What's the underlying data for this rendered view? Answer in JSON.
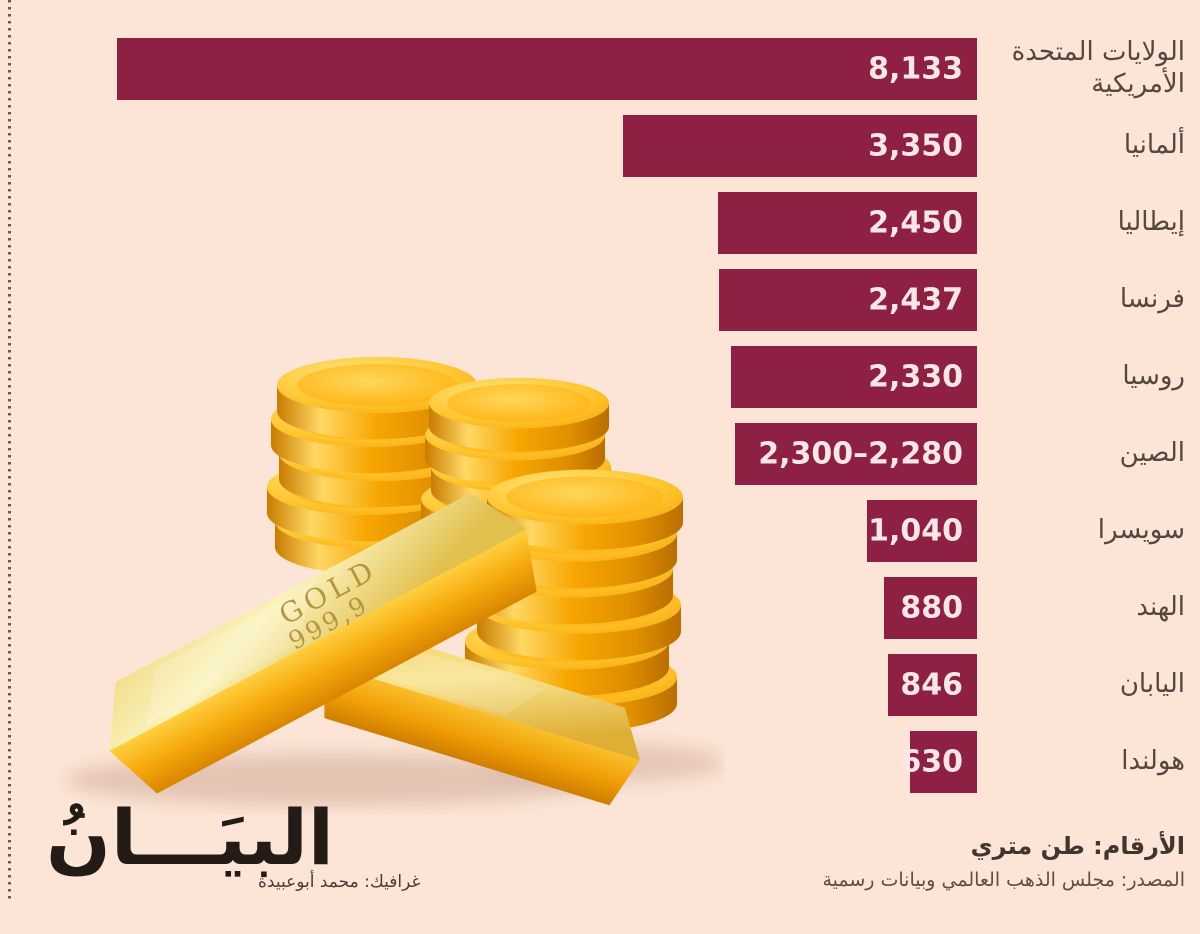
{
  "colors": {
    "background": "#fce5d6",
    "bar": "#8e2044",
    "value_text": "#f9e6e8",
    "label_text": "#55463e"
  },
  "chart_data": {
    "type": "bar",
    "orientation": "horizontal-rtl",
    "title": "",
    "unit": "طن متري",
    "max_value": 8133,
    "categories": [
      "الولايات المتحدة الأمريكية",
      "ألمانيا",
      "إيطاليا",
      "فرنسا",
      "روسيا",
      "الصين",
      "سويسرا",
      "الهند",
      "اليابان",
      "هولندا"
    ],
    "values": [
      8133,
      3350,
      2450,
      2437,
      2330,
      2290,
      1040,
      880,
      846,
      630
    ],
    "display_values": [
      "8,133",
      "3,350",
      "2,450",
      "2,437",
      "2,330",
      "2,300–2,280",
      "1,040",
      "880",
      "846",
      "630"
    ],
    "legend": null,
    "grid": false
  },
  "footer": {
    "unit_note": "الأرقام: طن متري",
    "source": "المصدر: مجلس الذهب العالمي وبيانات رسمية",
    "credit": "غرافيك: محمد أبوعبيدة",
    "logo_text": "البيَـــانُ"
  },
  "illustration": {
    "engraving_line1": "GOLD",
    "engraving_line2": "999,9"
  }
}
